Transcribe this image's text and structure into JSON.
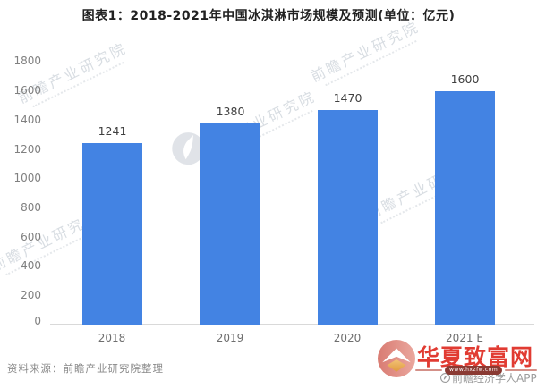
{
  "title": "图表1：2018-2021年中国冰淇淋市场规模及预测(单位：亿元)",
  "chart_data": {
    "type": "bar",
    "title": "图表1：2018-2021年中国冰淇淋市场规模及预测(单位：亿元)",
    "unit": "亿元",
    "categories": [
      "2018",
      "2019",
      "2020",
      "2021 E"
    ],
    "values": [
      1241,
      1380,
      1470,
      1600
    ],
    "value_labels": [
      "1241",
      "1380",
      "1470",
      "1600"
    ],
    "xlabel": "",
    "ylabel": "",
    "ylim": [
      0,
      1800
    ],
    "ytick_step": 200,
    "yticks_top_to_bottom": [
      "1800",
      "1600",
      "1400",
      "1200",
      "1000",
      "800",
      "600",
      "400",
      "200",
      "0"
    ],
    "grid": false,
    "legend": "none",
    "bar_color": "#4383E3"
  },
  "source_note": "资料来源：前瞻产业研究院整理",
  "watermark": {
    "brand_text": "前瞻产业研究院",
    "logo_icon": "qianzhan-logo-icon",
    "color": "#B9C2CC"
  },
  "footer_brand": {
    "site_name": "华夏致富网",
    "url_pill": "www.hxzfw.com",
    "app_text": "前瞻经济学人APP",
    "brand_red": "#E13B32"
  }
}
